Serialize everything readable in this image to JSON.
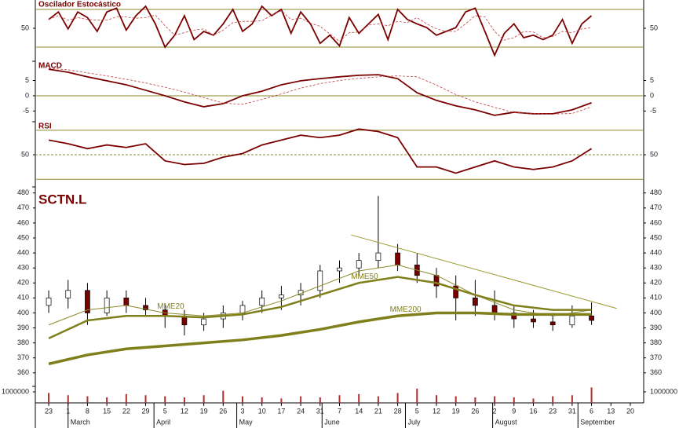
{
  "x_axis": {
    "xlim": [
      -0.69,
      30.69
    ],
    "xticks": [
      {
        "value": 0,
        "label": "23"
      },
      {
        "value": 1,
        "label": "1"
      },
      {
        "value": 2,
        "label": "8"
      },
      {
        "value": 3,
        "label": "15"
      },
      {
        "value": 4,
        "label": "22"
      },
      {
        "value": 5,
        "label": "29"
      },
      {
        "value": 6,
        "label": "5"
      },
      {
        "value": 7,
        "label": "12"
      },
      {
        "value": 8,
        "label": "19"
      },
      {
        "value": 9,
        "label": "26"
      },
      {
        "value": 10,
        "label": "3"
      },
      {
        "value": 11,
        "label": "10"
      },
      {
        "value": 12,
        "label": "17"
      },
      {
        "value": 13,
        "label": "24"
      },
      {
        "value": 14,
        "label": "31"
      },
      {
        "value": 15,
        "label": "7"
      },
      {
        "value": 16,
        "label": "14"
      },
      {
        "value": 17,
        "label": "21"
      },
      {
        "value": 18,
        "label": "28"
      },
      {
        "value": 19,
        "label": "5"
      },
      {
        "value": 20,
        "label": "12"
      },
      {
        "value": 21,
        "label": "19"
      },
      {
        "value": 22,
        "label": "26"
      },
      {
        "value": 23,
        "label": "2"
      },
      {
        "value": 24,
        "label": "9"
      },
      {
        "value": 25,
        "label": "16"
      },
      {
        "value": 26,
        "label": "23"
      },
      {
        "value": 27,
        "label": "31"
      },
      {
        "value": 28,
        "label": "6"
      },
      {
        "value": 29,
        "label": "13"
      },
      {
        "value": 30,
        "label": "20"
      }
    ],
    "months": [
      {
        "value": 1,
        "label": "March"
      },
      {
        "value": 5.43,
        "label": "April"
      },
      {
        "value": 9.7,
        "label": "May"
      },
      {
        "value": 14.1,
        "label": "June"
      },
      {
        "value": 18.4,
        "label": "July"
      },
      {
        "value": 22.9,
        "label": "August"
      },
      {
        "value": 27.3,
        "label": "September"
      }
    ]
  },
  "chart_data": [
    {
      "type": "line",
      "title": "Oscilador Estocástico",
      "ylim": [
        5,
        95
      ],
      "yticks": [
        50
      ],
      "hlines": [
        20,
        80
      ],
      "x": [
        0,
        0.5,
        1,
        1.5,
        2,
        2.5,
        3,
        3.5,
        4,
        4.5,
        5,
        5.5,
        6,
        6.5,
        7,
        7.5,
        8,
        8.5,
        9,
        9.5,
        10,
        10.5,
        11,
        11.5,
        12,
        12.5,
        13,
        13.5,
        14,
        14.5,
        15,
        15.5,
        16,
        16.5,
        17,
        17.5,
        18,
        18.5,
        19,
        19.5,
        20,
        20.5,
        21,
        21.5,
        22,
        22.5,
        23,
        23.5,
        24,
        24.5,
        25,
        25.5,
        26,
        26.5,
        27,
        27.5,
        28
      ],
      "series": [
        {
          "color": "#7a0000",
          "style": "solid",
          "values": [
            64,
            76,
            49,
            76,
            67,
            45,
            76,
            82,
            47,
            70,
            85,
            57,
            20,
            39,
            70,
            32,
            45,
            39,
            57,
            80,
            45,
            57,
            85,
            70,
            80,
            42,
            76,
            57,
            26,
            39,
            22,
            67,
            42,
            57,
            72,
            32,
            80,
            64,
            57,
            51,
            39,
            45,
            51,
            76,
            82,
            45,
            7,
            42,
            57,
            35,
            39,
            32,
            39,
            64,
            26,
            57,
            70
          ]
        },
        {
          "color": "#c04040",
          "style": "dashed",
          "values": [
            64,
            70,
            63,
            67,
            64,
            63,
            63,
            68,
            68,
            66,
            67,
            71,
            54,
            39,
            43,
            47,
            49,
            39,
            47,
            59,
            61,
            61,
            62,
            71,
            78,
            64,
            66,
            58,
            53,
            41,
            29,
            43,
            44,
            55,
            57,
            54,
            61,
            59,
            67,
            57,
            49,
            45,
            45,
            57,
            70,
            68,
            45,
            31,
            35,
            45,
            44,
            35,
            37,
            45,
            43,
            49,
            51
          ]
        }
      ]
    },
    {
      "type": "line",
      "title": "MACD",
      "ylim": [
        -8.5,
        11.3
      ],
      "yticks": [
        -5,
        0,
        5
      ],
      "hlines": [
        0
      ],
      "x": [
        0,
        1,
        2,
        3,
        4,
        5,
        6,
        7,
        8,
        9,
        10,
        11,
        12,
        13,
        14,
        15,
        16,
        17,
        18,
        19,
        20,
        21,
        22,
        23,
        24,
        25,
        26,
        27,
        28
      ],
      "series": [
        {
          "color": "#7a0000",
          "style": "solid",
          "values": [
            8.7,
            7.7,
            6.2,
            4.9,
            3.6,
            1.8,
            0,
            -2,
            -3.6,
            -2.6,
            0,
            1.5,
            3.6,
            4.9,
            5.6,
            6.2,
            6.7,
            6.9,
            5.6,
            1,
            -1.5,
            -3.3,
            -4.6,
            -6.4,
            -5.4,
            -5.9,
            -5.9,
            -4.6,
            -2.3
          ]
        },
        {
          "color": "#c04040",
          "style": "dashed",
          "values": [
            9.0,
            8.5,
            7.5,
            6.5,
            5.4,
            4.2,
            2.8,
            1.2,
            -0.6,
            -2.4,
            -2.8,
            -1.2,
            0.6,
            2.5,
            4.0,
            5.0,
            5.7,
            6.2,
            6.5,
            6.2,
            3.5,
            0.4,
            -2.0,
            -3.8,
            -5.5,
            -5.8,
            -6.0,
            -5.8,
            -3.6
          ]
        }
      ]
    },
    {
      "type": "line",
      "title": "RSI",
      "ylim": [
        25,
        77
      ],
      "yticks": [
        50
      ],
      "hlines": [
        30,
        70
      ],
      "dashed_hlines": [
        50
      ],
      "x": [
        0,
        1,
        2,
        3,
        4,
        5,
        6,
        7,
        8,
        9,
        10,
        11,
        12,
        13,
        14,
        15,
        16,
        17,
        18,
        19,
        20,
        21,
        22,
        23,
        24,
        25,
        26,
        27,
        28
      ],
      "series": [
        {
          "color": "#7a0000",
          "style": "solid",
          "values": [
            62,
            59,
            55,
            58,
            56,
            59,
            45,
            42,
            43,
            48,
            51,
            58,
            62,
            66,
            64,
            66,
            71,
            69,
            64,
            40,
            40,
            35,
            40,
            45,
            40,
            38,
            40,
            45,
            55
          ]
        }
      ]
    },
    {
      "type": "candlestick",
      "title": "SCTN.L",
      "ylim": [
        351,
        483
      ],
      "yticks": [
        360,
        370,
        380,
        390,
        400,
        410,
        420,
        430,
        440,
        450,
        460,
        470,
        480
      ],
      "x": [
        0,
        1,
        2,
        3,
        4,
        5,
        6,
        7,
        8,
        9,
        10,
        11,
        12,
        13,
        14,
        15,
        16,
        17,
        18,
        19,
        20,
        21,
        22,
        23,
        24,
        25,
        26,
        27,
        28
      ],
      "open": [
        405,
        410,
        415,
        400,
        410,
        405,
        402,
        398,
        392,
        396,
        400,
        405,
        410,
        412,
        415,
        428,
        430,
        435,
        440,
        432,
        425,
        418,
        410,
        405,
        400,
        396,
        394,
        392,
        398
      ],
      "high": [
        415,
        422,
        420,
        415,
        415,
        410,
        405,
        402,
        400,
        405,
        408,
        415,
        418,
        420,
        432,
        435,
        440,
        478,
        446,
        440,
        430,
        425,
        422,
        415,
        405,
        402,
        400,
        405,
        407
      ],
      "low": [
        400,
        403,
        392,
        398,
        400,
        398,
        390,
        385,
        388,
        390,
        395,
        400,
        402,
        405,
        410,
        420,
        425,
        430,
        428,
        420,
        410,
        395,
        398,
        395,
        390,
        390,
        388,
        390,
        392
      ],
      "close": [
        410,
        415,
        400,
        410,
        405,
        402,
        398,
        392,
        396,
        400,
        405,
        410,
        412,
        415,
        428,
        430,
        435,
        440,
        432,
        425,
        418,
        410,
        405,
        400,
        396,
        394,
        392,
        398,
        395
      ],
      "up_color": "#ffffff",
      "down_color": "#7a0000",
      "series": [
        {
          "name": "MME20",
          "color": "#8a8a2a",
          "width": 1,
          "x": [
            0,
            2,
            4,
            6,
            8,
            10,
            12,
            14,
            16,
            18,
            20,
            22,
            24,
            26,
            28
          ],
          "values": [
            392,
            402,
            405,
            400,
            398,
            400,
            408,
            418,
            428,
            432,
            425,
            412,
            402,
            398,
            402
          ]
        },
        {
          "name": "MME50",
          "color": "#7f7f1c",
          "width": 2.5,
          "x": [
            0,
            2,
            4,
            6,
            8,
            10,
            12,
            14,
            16,
            18,
            20,
            22,
            24,
            26,
            28
          ],
          "values": [
            383,
            395,
            398,
            398,
            397,
            399,
            404,
            412,
            420,
            424,
            420,
            412,
            405,
            402,
            402
          ]
        },
        {
          "name": "MME200",
          "color": "#7f7f1c",
          "width": 3.5,
          "x": [
            0,
            2,
            4,
            6,
            8,
            10,
            12,
            14,
            16,
            18,
            20,
            22,
            24,
            26,
            28
          ],
          "values": [
            366,
            372,
            376,
            378,
            380,
            382,
            385,
            389,
            394,
            398,
            400,
            400,
            399,
            399,
            399
          ]
        },
        {
          "color": "#9a9a30",
          "width": 1,
          "x": [
            15.6,
            29.3
          ],
          "values": [
            452,
            403
          ]
        }
      ]
    },
    {
      "type": "bar",
      "ylim": [
        0,
        1500000
      ],
      "yticks": [
        1000000
      ],
      "color": "#b03030",
      "x": [
        0,
        1,
        2,
        3,
        4,
        5,
        6,
        7,
        8,
        9,
        10,
        11,
        12,
        13,
        14,
        15,
        16,
        17,
        18,
        19,
        20,
        21,
        22,
        23,
        24,
        25,
        26,
        27,
        28
      ],
      "values": [
        900000,
        700000,
        600000,
        500000,
        800000,
        700000,
        600000,
        500000,
        700000,
        1100000,
        600000,
        500000,
        400000,
        600000,
        500000,
        700000,
        800000,
        600000,
        900000,
        1300000,
        700000,
        600000,
        500000,
        600000,
        500000,
        400000,
        600000,
        700000,
        1400000
      ]
    }
  ]
}
